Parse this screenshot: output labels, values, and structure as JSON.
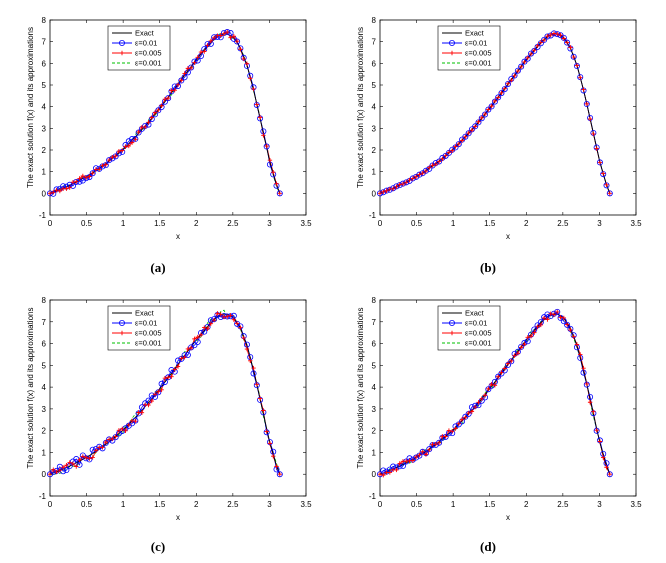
{
  "chart_data": [
    {
      "type": "line",
      "panel_label": "(a)",
      "xlabel": "x",
      "ylabel": "The exact solution f(x) and its approximations",
      "xlim": [
        0,
        3.5
      ],
      "ylim": [
        -1,
        8
      ],
      "xticks": [
        "0",
        "0.5",
        "1",
        "1.5",
        "2",
        "2.5",
        "3",
        "3.5"
      ],
      "yticks": [
        "-1",
        "0",
        "1",
        "2",
        "3",
        "4",
        "5",
        "6",
        "7",
        "8"
      ],
      "legend": [
        "Exact",
        "ε=0.01",
        "ε=0.005",
        "ε=0.001"
      ],
      "legend_position": "top-left",
      "noise_amplitude": 0.12,
      "x": [
        0,
        0.2,
        0.4,
        0.6,
        0.8,
        1.0,
        1.2,
        1.4,
        1.6,
        1.8,
        2.0,
        2.2,
        2.3,
        2.4,
        2.5,
        2.6,
        2.7,
        2.8,
        2.9,
        3.0,
        3.1,
        3.1416
      ],
      "series": [
        {
          "name": "Exact",
          "color": "#000000",
          "marker": "none",
          "dash": "solid",
          "values": [
            0,
            0.26,
            0.59,
            0.98,
            1.46,
            2.03,
            2.72,
            3.49,
            4.36,
            5.27,
            6.17,
            6.96,
            7.27,
            7.38,
            7.24,
            6.74,
            5.84,
            4.55,
            3.03,
            1.52,
            0.35,
            0
          ]
        },
        {
          "name": "ε=0.01",
          "color": "#0000ff",
          "marker": "circle",
          "dash": "solid",
          "values": "Exact + noise"
        },
        {
          "name": "ε=0.005",
          "color": "#ff0000",
          "marker": "plus",
          "dash": "solid",
          "values": "Exact + noise"
        },
        {
          "name": "ε=0.001",
          "color": "#00c000",
          "marker": "none",
          "dash": "dashed",
          "values": "Exact + noise"
        }
      ]
    },
    {
      "type": "line",
      "panel_label": "(b)",
      "xlabel": "x",
      "ylabel": "The exact solution f(x) and its approximations",
      "xlim": [
        0,
        3.5
      ],
      "ylim": [
        -1,
        8
      ],
      "xticks": [
        "0",
        "0.5",
        "1",
        "1.5",
        "2",
        "2.5",
        "3",
        "3.5"
      ],
      "yticks": [
        "-1",
        "0",
        "1",
        "2",
        "3",
        "4",
        "5",
        "6",
        "7",
        "8"
      ],
      "legend": [
        "Exact",
        "ε=0.01",
        "ε=0.005",
        "ε=0.001"
      ],
      "legend_position": "top-center",
      "noise_amplitude": 0.03,
      "x": [
        0,
        0.2,
        0.4,
        0.6,
        0.8,
        1.0,
        1.2,
        1.4,
        1.6,
        1.8,
        2.0,
        2.2,
        2.3,
        2.4,
        2.5,
        2.6,
        2.7,
        2.8,
        2.9,
        3.0,
        3.1,
        3.1416
      ],
      "series": [
        {
          "name": "Exact",
          "color": "#000000",
          "marker": "none",
          "dash": "solid",
          "values": [
            0,
            0.26,
            0.59,
            0.98,
            1.46,
            2.03,
            2.72,
            3.49,
            4.36,
            5.27,
            6.17,
            6.96,
            7.27,
            7.38,
            7.24,
            6.74,
            5.84,
            4.55,
            3.03,
            1.52,
            0.35,
            0
          ]
        },
        {
          "name": "ε=0.01",
          "color": "#0000ff",
          "marker": "circle",
          "dash": "solid",
          "values": "Exact + noise"
        },
        {
          "name": "ε=0.005",
          "color": "#ff0000",
          "marker": "plus",
          "dash": "solid",
          "values": "Exact + noise"
        },
        {
          "name": "ε=0.001",
          "color": "#00c000",
          "marker": "none",
          "dash": "dashed",
          "values": "Exact + noise"
        }
      ]
    },
    {
      "type": "line",
      "panel_label": "(c)",
      "xlabel": "x",
      "ylabel": "The exact solution f(x) and its approximations",
      "xlim": [
        0,
        3.5
      ],
      "ylim": [
        -1,
        8
      ],
      "xticks": [
        "0",
        "0.5",
        "1",
        "1.5",
        "2",
        "2.5",
        "3",
        "3.5"
      ],
      "yticks": [
        "-1",
        "0",
        "1",
        "2",
        "3",
        "4",
        "5",
        "6",
        "7",
        "8"
      ],
      "legend": [
        "Exact",
        "ε=0.01",
        "ε=0.005",
        "ε=0.001"
      ],
      "legend_position": "top-center",
      "noise_amplitude": 0.18,
      "x": [
        0,
        0.2,
        0.4,
        0.6,
        0.8,
        1.0,
        1.2,
        1.4,
        1.6,
        1.8,
        2.0,
        2.2,
        2.3,
        2.4,
        2.5,
        2.6,
        2.7,
        2.8,
        2.9,
        3.0,
        3.1,
        3.1416
      ],
      "series": [
        {
          "name": "Exact",
          "color": "#000000",
          "marker": "none",
          "dash": "solid",
          "values": [
            0,
            0.26,
            0.59,
            0.98,
            1.46,
            2.03,
            2.72,
            3.49,
            4.36,
            5.27,
            6.17,
            6.96,
            7.27,
            7.38,
            7.24,
            6.74,
            5.84,
            4.55,
            3.03,
            1.52,
            0.35,
            0
          ]
        },
        {
          "name": "ε=0.01",
          "color": "#0000ff",
          "marker": "circle",
          "dash": "solid",
          "values": "Exact + noise"
        },
        {
          "name": "ε=0.005",
          "color": "#ff0000",
          "marker": "plus",
          "dash": "solid",
          "values": "Exact + noise"
        },
        {
          "name": "ε=0.001",
          "color": "#00c000",
          "marker": "none",
          "dash": "dashed",
          "values": "Exact + noise"
        }
      ]
    },
    {
      "type": "line",
      "panel_label": "(d)",
      "xlabel": "x",
      "ylabel": "The exact solution f(x) and its approximations",
      "xlim": [
        0,
        3.5
      ],
      "ylim": [
        -1,
        8
      ],
      "xticks": [
        "0",
        "0.5",
        "1",
        "1.5",
        "2",
        "2.5",
        "3",
        "3.5"
      ],
      "yticks": [
        "-1",
        "0",
        "1",
        "2",
        "3",
        "4",
        "5",
        "6",
        "7",
        "8"
      ],
      "legend": [
        "Exact",
        "ε=0.01",
        "ε=0.005",
        "ε=0.001"
      ],
      "legend_position": "top-left",
      "noise_amplitude": 0.15,
      "x": [
        0,
        0.2,
        0.4,
        0.6,
        0.8,
        1.0,
        1.2,
        1.4,
        1.6,
        1.8,
        2.0,
        2.2,
        2.3,
        2.4,
        2.5,
        2.6,
        2.7,
        2.8,
        2.9,
        3.0,
        3.1,
        3.1416
      ],
      "series": [
        {
          "name": "Exact",
          "color": "#000000",
          "marker": "none",
          "dash": "solid",
          "values": [
            0,
            0.26,
            0.59,
            0.98,
            1.46,
            2.03,
            2.72,
            3.49,
            4.36,
            5.27,
            6.17,
            6.96,
            7.27,
            7.38,
            7.24,
            6.74,
            5.84,
            4.55,
            3.03,
            1.52,
            0.35,
            0
          ]
        },
        {
          "name": "ε=0.01",
          "color": "#0000ff",
          "marker": "circle",
          "dash": "solid",
          "values": "Exact + noise"
        },
        {
          "name": "ε=0.005",
          "color": "#ff0000",
          "marker": "plus",
          "dash": "solid",
          "values": "Exact + noise"
        },
        {
          "name": "ε=0.001",
          "color": "#00c000",
          "marker": "none",
          "dash": "dashed",
          "values": "Exact + noise"
        }
      ]
    }
  ]
}
